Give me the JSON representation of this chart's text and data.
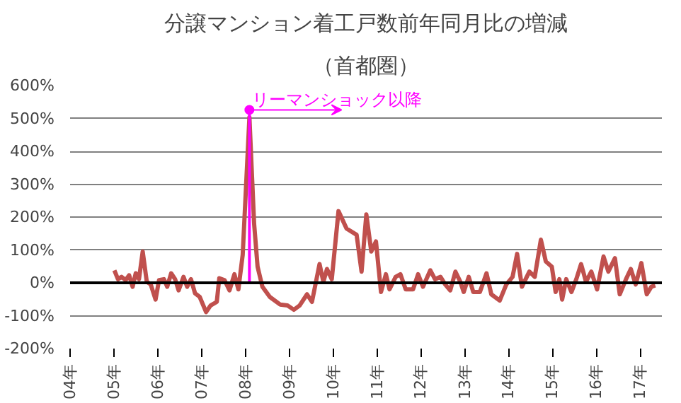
{
  "chart_data": {
    "type": "line",
    "title": "分譲マンション着工戸数前年同月比の増減",
    "subtitle": "（首都圏）",
    "x": [
      "2005-01-04",
      "2005-02-03",
      "2005-03-05",
      "2005-04-08",
      "2005-05-07",
      "2005-06-05",
      "2005-07-01",
      "2005-07-28",
      "2005-08-28",
      "2005-10-01",
      "2005-11-03",
      "2005-12-13",
      "2006-01-11",
      "2006-02-21",
      "2006-03-20",
      "2006-04-22",
      "2006-05-25",
      "2006-06-23",
      "2006-08-03",
      "2006-09-02",
      "2006-10-04",
      "2006-11-07",
      "2006-12-16",
      "2007-02-07",
      "2007-03-16",
      "2007-05-07",
      "2007-05-28",
      "2007-07-11",
      "2007-08-21",
      "2007-10-01",
      "2007-11-03",
      "2007-12-09",
      "2008-02-03",
      "2008-03-13",
      "2008-04-11",
      "2008-05-21",
      "2008-07-22",
      "2008-10-15",
      "2008-12-16",
      "2009-02-07",
      "2009-03-27",
      "2009-05-28",
      "2009-07-08",
      "2009-09-09",
      "2009-10-11",
      "2009-11-10",
      "2009-12-20",
      "2010-02-14",
      "2010-04-22",
      "2010-07-15",
      "2010-08-25",
      "2010-10-04",
      "2010-11-14",
      "2010-12-23",
      "2011-02-03",
      "2011-03-16",
      "2011-04-15",
      "2011-06-05",
      "2011-07-15",
      "2011-08-28",
      "2011-10-28",
      "2011-12-09",
      "2012-01-19",
      "2012-03-20",
      "2012-04-28",
      "2012-06-13",
      "2012-07-22",
      "2012-09-02",
      "2012-10-15",
      "2012-11-25",
      "2012-12-23",
      "2013-02-03",
      "2013-03-13",
      "2013-05-07",
      "2013-07-01",
      "2013-08-10",
      "2013-10-19",
      "2013-12-13",
      "2014-02-03",
      "2014-03-13",
      "2014-04-22",
      "2014-06-23",
      "2014-08-07",
      "2014-09-27",
      "2014-11-07",
      "2014-12-27",
      "2015-01-28",
      "2015-02-28",
      "2015-03-23",
      "2015-04-26",
      "2015-06-09",
      "2015-07-19",
      "2015-08-28",
      "2015-10-08",
      "2015-11-21",
      "2016-01-08",
      "2016-03-02",
      "2016-04-11",
      "2016-06-05",
      "2016-07-15",
      "2016-09-05",
      "2016-10-15",
      "2016-11-25",
      "2017-01-11",
      "2017-02-25",
      "2017-04-04",
      "2017-05-07"
    ],
    "series": [
      {
        "color": "#c0504d",
        "values": [
          38,
          11,
          18,
          8,
          23,
          -12,
          29,
          11,
          95,
          3,
          -5,
          -51,
          8,
          11,
          -12,
          29,
          11,
          -23,
          18,
          -12,
          11,
          -32,
          -43,
          -89,
          -69,
          -58,
          14,
          8,
          -23,
          26,
          -20,
          85,
          503,
          180,
          49,
          -12,
          -43,
          -66,
          -69,
          -82,
          -69,
          -35,
          -58,
          57,
          3,
          42,
          11,
          218,
          165,
          146,
          34,
          208,
          95,
          126,
          -28,
          26,
          -20,
          18,
          26,
          -20,
          -20,
          26,
          -12,
          38,
          11,
          18,
          -5,
          -23,
          34,
          3,
          -28,
          18,
          -28,
          -28,
          29,
          -35,
          -54,
          -5,
          18,
          88,
          -12,
          34,
          18,
          131,
          65,
          49,
          -28,
          11,
          -51,
          11,
          -28,
          11,
          57,
          3,
          34,
          -20,
          80,
          34,
          75,
          -35,
          11,
          42,
          -5,
          60,
          -35,
          -12,
          -8
        ]
      }
    ],
    "xlim": [
      "2004-01-01",
      "2017-07-01"
    ],
    "xticks": [
      {
        "value": "2004-01-01",
        "label": "04年"
      },
      {
        "value": "2005-01-01",
        "label": "05年"
      },
      {
        "value": "2006-01-01",
        "label": "06年"
      },
      {
        "value": "2007-01-01",
        "label": "07年"
      },
      {
        "value": "2008-01-01",
        "label": "08年"
      },
      {
        "value": "2009-01-01",
        "label": "09年"
      },
      {
        "value": "2010-01-01",
        "label": "10年"
      },
      {
        "value": "2011-01-01",
        "label": "11年"
      },
      {
        "value": "2012-01-01",
        "label": "12年"
      },
      {
        "value": "2013-01-01",
        "label": "13年"
      },
      {
        "value": "2014-01-01",
        "label": "14年"
      },
      {
        "value": "2015-01-01",
        "label": "15年"
      },
      {
        "value": "2016-01-01",
        "label": "16年"
      },
      {
        "value": "2017-01-01",
        "label": "17年"
      }
    ],
    "ylim": [
      -200,
      600
    ],
    "yticks": [
      {
        "value": -200,
        "label": "-200%"
      },
      {
        "value": -100,
        "label": "-100%"
      },
      {
        "value": 0,
        "label": "0%"
      },
      {
        "value": 100,
        "label": "100%"
      },
      {
        "value": 200,
        "label": "200%"
      },
      {
        "value": 300,
        "label": "300%"
      },
      {
        "value": 400,
        "label": "400%"
      },
      {
        "value": 500,
        "label": "500%"
      },
      {
        "value": 600,
        "label": "600%"
      }
    ],
    "grid": "y",
    "ref_lines": [
      {
        "axis": "y",
        "value": 0,
        "color": "#000000"
      }
    ],
    "annotations": [
      {
        "text": "リーマンショック以降",
        "x": "2008-02-03",
        "y": 526
      }
    ],
    "line_style": "solid"
  }
}
